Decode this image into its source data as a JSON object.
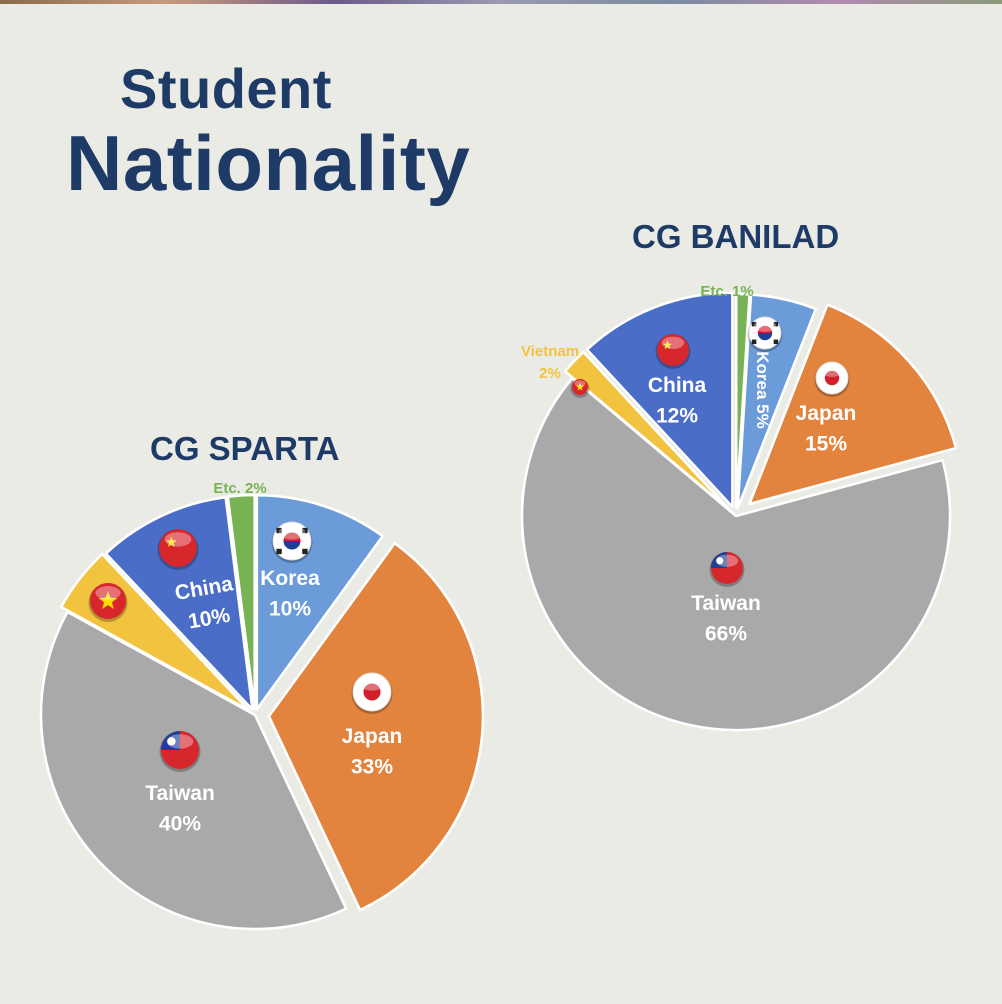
{
  "header": {
    "line1": "Student",
    "line2": "Nationality"
  },
  "colors": {
    "title": "#1e3a66",
    "Taiwan": "#a9a9a9",
    "Japan": "#e2833e",
    "Korea": "#6b9bd8",
    "China": "#4a6dc8",
    "Vietnam": "#f2c33f",
    "Etc.": "#77b354"
  },
  "chart_data": [
    {
      "type": "pie",
      "title": "CG BANILAD",
      "slices": [
        {
          "name": "Etc.",
          "value": 1,
          "pct": "1%",
          "flag": ""
        },
        {
          "name": "Korea",
          "value": 5,
          "pct": "5%",
          "flag": "korea-flag"
        },
        {
          "name": "Japan",
          "value": 15,
          "pct": "15%",
          "flag": "japan-flag"
        },
        {
          "name": "Taiwan",
          "value": 66,
          "pct": "66%",
          "flag": "taiwan-flag"
        },
        {
          "name": "Vietnam",
          "value": 2,
          "pct": "2%",
          "flag": "vietnam-flag"
        },
        {
          "name": "China",
          "value": 12,
          "pct": "12%",
          "flag": "china-flag"
        }
      ]
    },
    {
      "type": "pie",
      "title": "CG SPARTA",
      "slices": [
        {
          "name": "Korea",
          "value": 10,
          "pct": "10%",
          "flag": "korea-flag"
        },
        {
          "name": "Japan",
          "value": 33,
          "pct": "33%",
          "flag": "japan-flag"
        },
        {
          "name": "Taiwan",
          "value": 40,
          "pct": "40%",
          "flag": "taiwan-flag"
        },
        {
          "name": "Vietnam",
          "value": 5,
          "pct": "5%",
          "flag": "vietnam-flag"
        },
        {
          "name": "China",
          "value": 10,
          "pct": "10%",
          "flag": "china-flag"
        },
        {
          "name": "Etc.",
          "value": 2,
          "pct": "2%",
          "flag": ""
        }
      ]
    }
  ]
}
